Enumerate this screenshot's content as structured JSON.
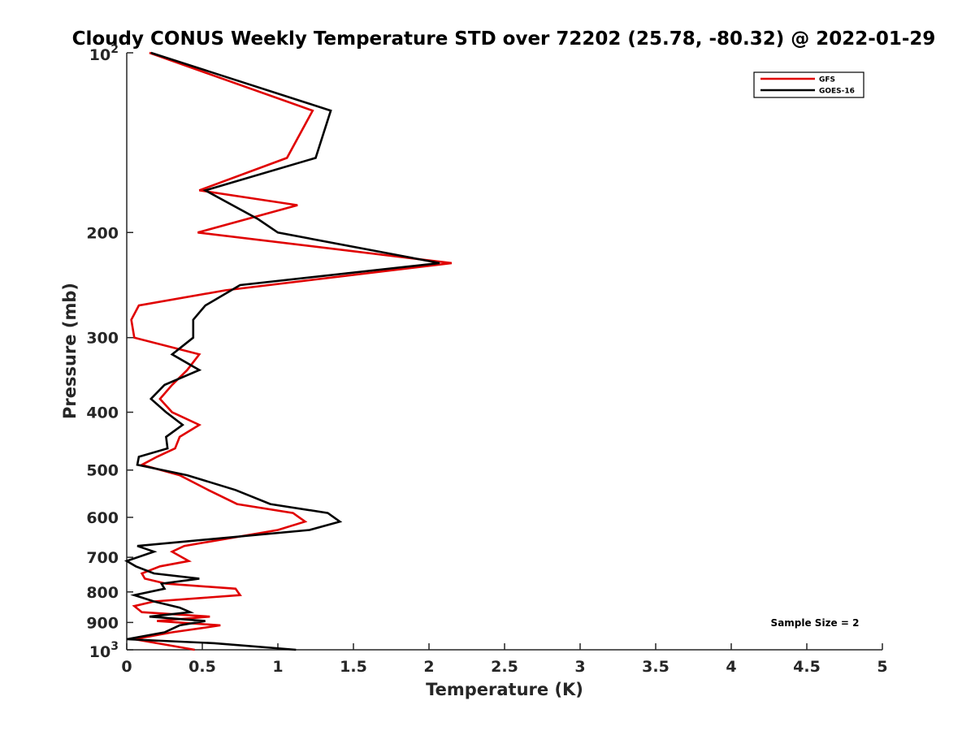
{
  "chart_data": {
    "type": "line",
    "title": "Cloudy CONUS Weekly Temperature STD over 72202 (25.78, -80.32) @ 2022-01-29",
    "xlabel": "Temperature (K)",
    "ylabel": "Pressure (mb)",
    "xlim": [
      0,
      5
    ],
    "ylim": [
      100,
      1000
    ],
    "y_scale": "log",
    "y_reversed": true,
    "grid": false,
    "legend_position": "top-right",
    "x_ticks": [
      0,
      0.5,
      1,
      1.5,
      2,
      2.5,
      3,
      3.5,
      4,
      4.5,
      5
    ],
    "x_tick_labels": [
      "0",
      "0.5",
      "1",
      "1.5",
      "2",
      "2.5",
      "3",
      "3.5",
      "4",
      "4.5",
      "5"
    ],
    "y_ticks": [
      200,
      300,
      400,
      500,
      600,
      700,
      800,
      900
    ],
    "y_tick_labels": [
      "200",
      "300",
      "400",
      "500",
      "600",
      "700",
      "800",
      "900"
    ],
    "y_end_ticks": [
      {
        "value": 100,
        "base": "10",
        "exp": "2"
      },
      {
        "value": 1000,
        "base": "10",
        "exp": "3"
      }
    ],
    "annotation": "Sample Size = 2",
    "series": [
      {
        "name": "GFS",
        "color": "#e00000",
        "points": [
          [
            0.15,
            100
          ],
          [
            1.23,
            125
          ],
          [
            1.06,
            150
          ],
          [
            0.48,
            170
          ],
          [
            1.13,
            180
          ],
          [
            0.47,
            200
          ],
          [
            2.15,
            225
          ],
          [
            0.65,
            250
          ],
          [
            0.08,
            265
          ],
          [
            0.03,
            280
          ],
          [
            0.05,
            300
          ],
          [
            0.48,
            320
          ],
          [
            0.4,
            340
          ],
          [
            0.3,
            360
          ],
          [
            0.22,
            380
          ],
          [
            0.3,
            400
          ],
          [
            0.48,
            420
          ],
          [
            0.35,
            440
          ],
          [
            0.32,
            460
          ],
          [
            0.2,
            475
          ],
          [
            0.1,
            490
          ],
          [
            0.35,
            510
          ],
          [
            0.54,
            540
          ],
          [
            0.73,
            570
          ],
          [
            1.1,
            590
          ],
          [
            1.18,
            610
          ],
          [
            1.0,
            630
          ],
          [
            0.38,
            670
          ],
          [
            0.3,
            685
          ],
          [
            0.41,
            710
          ],
          [
            0.22,
            725
          ],
          [
            0.1,
            745
          ],
          [
            0.12,
            760
          ],
          [
            0.26,
            775
          ],
          [
            0.72,
            790
          ],
          [
            0.75,
            810
          ],
          [
            0.18,
            830
          ],
          [
            0.05,
            845
          ],
          [
            0.1,
            865
          ],
          [
            0.55,
            880
          ],
          [
            0.2,
            895
          ],
          [
            0.62,
            910
          ],
          [
            0.3,
            935
          ],
          [
            0.05,
            960
          ],
          [
            0.45,
            1000
          ]
        ]
      },
      {
        "name": "GOES-16",
        "color": "#000000",
        "points": [
          [
            0.16,
            100
          ],
          [
            1.35,
            125
          ],
          [
            1.25,
            150
          ],
          [
            0.52,
            170
          ],
          [
            0.87,
            190
          ],
          [
            1.0,
            200
          ],
          [
            2.07,
            225
          ],
          [
            0.75,
            245
          ],
          [
            0.52,
            265
          ],
          [
            0.44,
            280
          ],
          [
            0.44,
            300
          ],
          [
            0.3,
            320
          ],
          [
            0.48,
            340
          ],
          [
            0.25,
            360
          ],
          [
            0.16,
            380
          ],
          [
            0.26,
            400
          ],
          [
            0.37,
            420
          ],
          [
            0.26,
            440
          ],
          [
            0.27,
            460
          ],
          [
            0.08,
            475
          ],
          [
            0.07,
            490
          ],
          [
            0.4,
            510
          ],
          [
            0.72,
            540
          ],
          [
            0.95,
            570
          ],
          [
            1.33,
            590
          ],
          [
            1.41,
            610
          ],
          [
            1.21,
            630
          ],
          [
            0.07,
            670
          ],
          [
            0.18,
            685
          ],
          [
            0.0,
            710
          ],
          [
            0.06,
            725
          ],
          [
            0.18,
            745
          ],
          [
            0.48,
            760
          ],
          [
            0.23,
            775
          ],
          [
            0.25,
            790
          ],
          [
            0.05,
            810
          ],
          [
            0.18,
            830
          ],
          [
            0.35,
            850
          ],
          [
            0.42,
            865
          ],
          [
            0.15,
            880
          ],
          [
            0.52,
            895
          ],
          [
            0.35,
            910
          ],
          [
            0.25,
            935
          ],
          [
            0.0,
            960
          ],
          [
            0.58,
            975
          ],
          [
            1.12,
            1000
          ]
        ]
      }
    ]
  }
}
